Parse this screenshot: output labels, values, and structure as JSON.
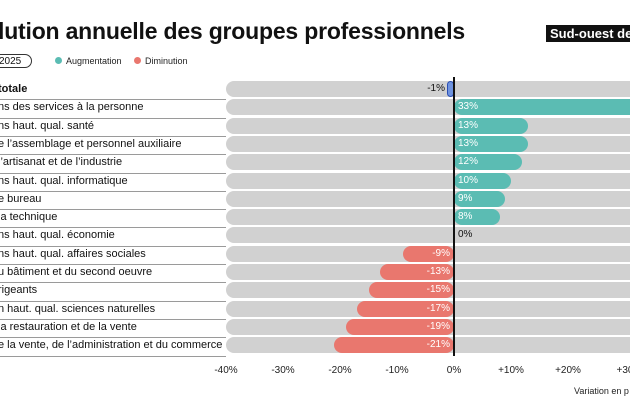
{
  "header": {
    "title": "lution annuelle des groupes professionnels",
    "region": "Sud-ouest de L",
    "period": "2025"
  },
  "colors": {
    "increase": "#5bbcb3",
    "decrease": "#e9776e",
    "total": "#6f93df",
    "track": "#d1d1d1"
  },
  "chart_data": {
    "type": "bar",
    "orientation": "horizontal",
    "legend": [
      "Augmentation",
      "Diminution"
    ],
    "legend_position": "top-left",
    "categories": [
      "totale",
      "ns des services à la personne",
      "ns haut. qual. santé",
      "e l’assemblage et personnel auxiliaire",
      "l’artisanat et de l’industrie",
      "ns haut. qual. informatique",
      "e bureau",
      "la technique",
      "ns haut. qual. économie",
      "ns haut. qual. affaires sociales",
      "u bâtiment et du second oeuvre",
      "rigeants",
      "n haut. qual. sciences naturelles",
      "la restauration et de la vente",
      "e la vente, de l’administration et du commerce"
    ],
    "values": [
      -1,
      33,
      13,
      13,
      12,
      10,
      9,
      8,
      0,
      -9,
      -13,
      -15,
      -17,
      -19,
      -21
    ],
    "value_labels": [
      "-1%",
      "33%",
      "13%",
      "13%",
      "12%",
      "10%",
      "9%",
      "8%",
      "0%",
      "-9%",
      "-13%",
      "-15%",
      "-17%",
      "-19%",
      "-21%"
    ],
    "xlim": [
      -40,
      30
    ],
    "x_ticks": [
      -40,
      -30,
      -20,
      -10,
      0,
      10,
      20,
      30
    ],
    "x_tick_labels": [
      "-40%",
      "-30%",
      "-20%",
      "-10%",
      "0%",
      "+10%",
      "+20%",
      "+30"
    ],
    "xlabel": "Variation en p",
    "grid": false
  }
}
